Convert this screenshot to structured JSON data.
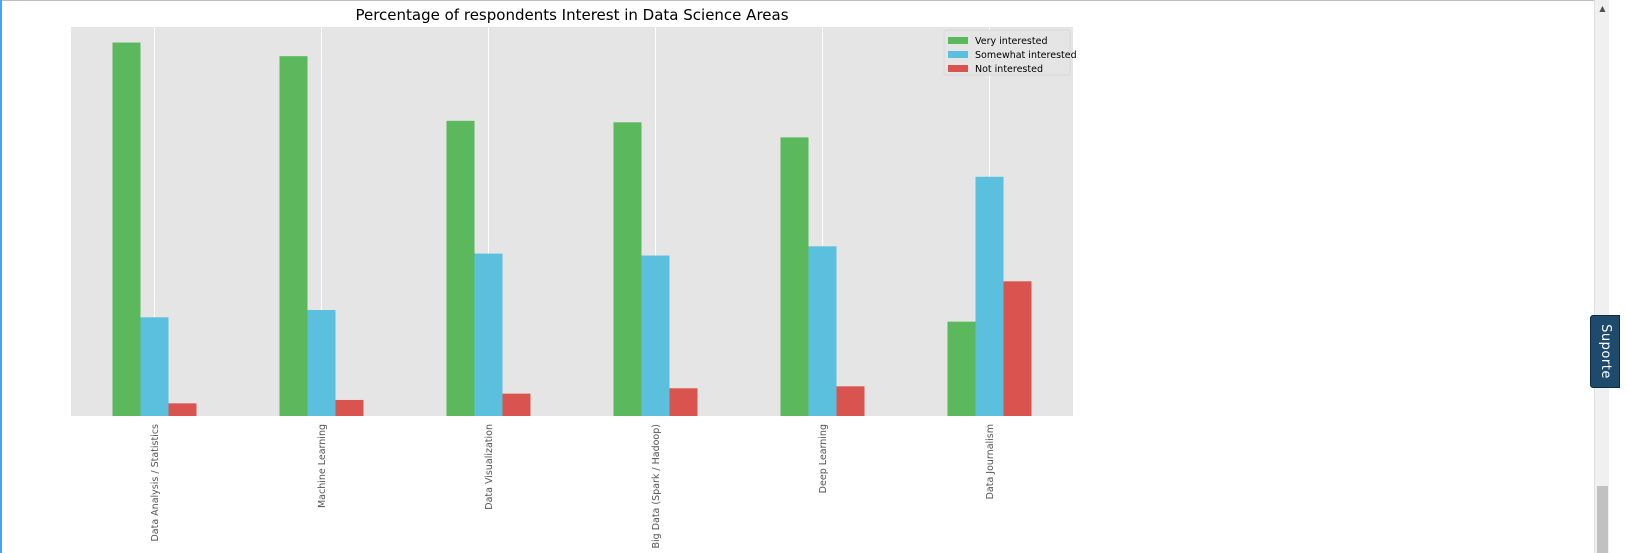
{
  "support_label": "Suporte",
  "colors": {
    "very": "#5cb85c",
    "somewhat": "#5bc0de",
    "not": "#d9534f",
    "plot_bg": "#e5e5e5"
  },
  "chart_data": {
    "type": "bar",
    "title": "Percentage of respondents Interest in Data Science Areas",
    "xlabel": "",
    "ylabel": "",
    "categories": [
      "Data Analysis / Statistics",
      "Machine Learning",
      "Data Visualization",
      "Big Data (Spark / Hadoop)",
      "Deep Learning",
      "Data Journalism"
    ],
    "series": [
      {
        "name": "Very interested",
        "values": [
          76.8,
          74.0,
          60.7,
          60.4,
          57.3,
          19.4
        ]
      },
      {
        "name": "Somewhat interested",
        "values": [
          20.3,
          21.8,
          33.4,
          33.0,
          34.9,
          49.2
        ]
      },
      {
        "name": "Not interested",
        "values": [
          2.6,
          3.3,
          4.6,
          5.7,
          6.1,
          27.7
        ]
      }
    ],
    "ylim": [
      0,
      80
    ],
    "grid": true,
    "legend": "top-right",
    "x_tick_rotation": 90
  }
}
